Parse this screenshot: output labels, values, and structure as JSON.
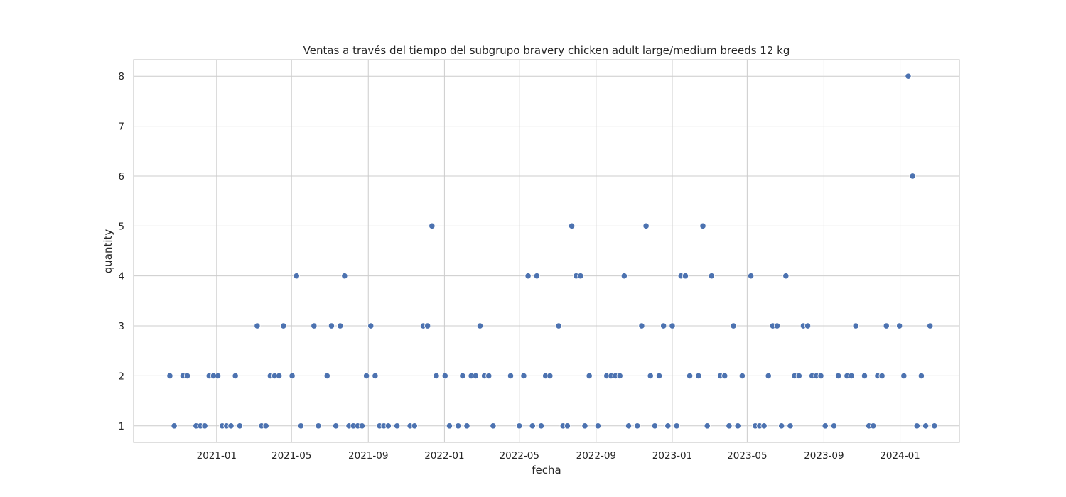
{
  "chart_data": {
    "type": "scatter",
    "title": "Ventas a través del tiempo del subgrupo bravery chicken adult large/medium breeds 12 kg",
    "xlabel": "fecha",
    "ylabel": "quantity",
    "x_ticks": [
      "2021-01",
      "2021-05",
      "2021-09",
      "2022-01",
      "2022-05",
      "2022-09",
      "2023-01",
      "2023-05",
      "2023-09",
      "2024-01"
    ],
    "y_ticks": [
      "1",
      "2",
      "3",
      "4",
      "5",
      "6",
      "7",
      "8"
    ],
    "xlim": [
      "2020-08-21",
      "2024-04-05"
    ],
    "ylim": [
      0.67,
      8.33
    ],
    "grid": true,
    "marker_color": "#4c72b0",
    "points": [
      {
        "x": "2020-10-18",
        "y": 2
      },
      {
        "x": "2020-10-25",
        "y": 1
      },
      {
        "x": "2020-11-08",
        "y": 2
      },
      {
        "x": "2020-11-15",
        "y": 2
      },
      {
        "x": "2020-11-29",
        "y": 1
      },
      {
        "x": "2020-12-06",
        "y": 1
      },
      {
        "x": "2020-12-13",
        "y": 1
      },
      {
        "x": "2020-12-20",
        "y": 2
      },
      {
        "x": "2020-12-27",
        "y": 2
      },
      {
        "x": "2021-01-03",
        "y": 2
      },
      {
        "x": "2021-01-10",
        "y": 1
      },
      {
        "x": "2021-01-17",
        "y": 1
      },
      {
        "x": "2021-01-24",
        "y": 1
      },
      {
        "x": "2021-01-31",
        "y": 2
      },
      {
        "x": "2021-02-07",
        "y": 1
      },
      {
        "x": "2021-03-07",
        "y": 3
      },
      {
        "x": "2021-03-14",
        "y": 1
      },
      {
        "x": "2021-03-21",
        "y": 1
      },
      {
        "x": "2021-03-28",
        "y": 2
      },
      {
        "x": "2021-04-04",
        "y": 2
      },
      {
        "x": "2021-04-11",
        "y": 2
      },
      {
        "x": "2021-04-18",
        "y": 3
      },
      {
        "x": "2021-05-02",
        "y": 2
      },
      {
        "x": "2021-05-09",
        "y": 4
      },
      {
        "x": "2021-05-16",
        "y": 1
      },
      {
        "x": "2021-06-06",
        "y": 3
      },
      {
        "x": "2021-06-13",
        "y": 1
      },
      {
        "x": "2021-06-27",
        "y": 2
      },
      {
        "x": "2021-07-04",
        "y": 3
      },
      {
        "x": "2021-07-11",
        "y": 1
      },
      {
        "x": "2021-07-18",
        "y": 3
      },
      {
        "x": "2021-07-25",
        "y": 4
      },
      {
        "x": "2021-08-01",
        "y": 1
      },
      {
        "x": "2021-08-08",
        "y": 1
      },
      {
        "x": "2021-08-15",
        "y": 1
      },
      {
        "x": "2021-08-22",
        "y": 1
      },
      {
        "x": "2021-08-29",
        "y": 2
      },
      {
        "x": "2021-09-05",
        "y": 3
      },
      {
        "x": "2021-09-12",
        "y": 2
      },
      {
        "x": "2021-09-19",
        "y": 1
      },
      {
        "x": "2021-09-26",
        "y": 1
      },
      {
        "x": "2021-10-03",
        "y": 1
      },
      {
        "x": "2021-10-17",
        "y": 1
      },
      {
        "x": "2021-11-07",
        "y": 1
      },
      {
        "x": "2021-11-14",
        "y": 1
      },
      {
        "x": "2021-11-28",
        "y": 3
      },
      {
        "x": "2021-12-05",
        "y": 3
      },
      {
        "x": "2021-12-12",
        "y": 5
      },
      {
        "x": "2021-12-19",
        "y": 2
      },
      {
        "x": "2022-01-02",
        "y": 2
      },
      {
        "x": "2022-01-09",
        "y": 1
      },
      {
        "x": "2022-01-23",
        "y": 1
      },
      {
        "x": "2022-01-30",
        "y": 2
      },
      {
        "x": "2022-02-06",
        "y": 1
      },
      {
        "x": "2022-02-13",
        "y": 2
      },
      {
        "x": "2022-02-20",
        "y": 2
      },
      {
        "x": "2022-02-27",
        "y": 3
      },
      {
        "x": "2022-03-06",
        "y": 2
      },
      {
        "x": "2022-03-13",
        "y": 2
      },
      {
        "x": "2022-03-20",
        "y": 1
      },
      {
        "x": "2022-04-17",
        "y": 2
      },
      {
        "x": "2022-05-01",
        "y": 1
      },
      {
        "x": "2022-05-08",
        "y": 2
      },
      {
        "x": "2022-05-15",
        "y": 4
      },
      {
        "x": "2022-05-22",
        "y": 1
      },
      {
        "x": "2022-05-29",
        "y": 4
      },
      {
        "x": "2022-06-05",
        "y": 1
      },
      {
        "x": "2022-06-12",
        "y": 2
      },
      {
        "x": "2022-06-19",
        "y": 2
      },
      {
        "x": "2022-07-03",
        "y": 3
      },
      {
        "x": "2022-07-10",
        "y": 1
      },
      {
        "x": "2022-07-17",
        "y": 1
      },
      {
        "x": "2022-07-24",
        "y": 5
      },
      {
        "x": "2022-07-31",
        "y": 4
      },
      {
        "x": "2022-08-07",
        "y": 4
      },
      {
        "x": "2022-08-14",
        "y": 1
      },
      {
        "x": "2022-08-21",
        "y": 2
      },
      {
        "x": "2022-09-04",
        "y": 1
      },
      {
        "x": "2022-09-18",
        "y": 2
      },
      {
        "x": "2022-09-25",
        "y": 2
      },
      {
        "x": "2022-10-02",
        "y": 2
      },
      {
        "x": "2022-10-09",
        "y": 2
      },
      {
        "x": "2022-10-16",
        "y": 4
      },
      {
        "x": "2022-10-23",
        "y": 1
      },
      {
        "x": "2022-11-06",
        "y": 1
      },
      {
        "x": "2022-11-13",
        "y": 3
      },
      {
        "x": "2022-11-20",
        "y": 5
      },
      {
        "x": "2022-11-27",
        "y": 2
      },
      {
        "x": "2022-12-04",
        "y": 1
      },
      {
        "x": "2022-12-11",
        "y": 2
      },
      {
        "x": "2022-12-18",
        "y": 3
      },
      {
        "x": "2022-12-25",
        "y": 1
      },
      {
        "x": "2023-01-01",
        "y": 3
      },
      {
        "x": "2023-01-08",
        "y": 1
      },
      {
        "x": "2023-01-15",
        "y": 4
      },
      {
        "x": "2023-01-22",
        "y": 4
      },
      {
        "x": "2023-01-29",
        "y": 2
      },
      {
        "x": "2023-02-12",
        "y": 2
      },
      {
        "x": "2023-02-19",
        "y": 5
      },
      {
        "x": "2023-02-26",
        "y": 1
      },
      {
        "x": "2023-03-05",
        "y": 4
      },
      {
        "x": "2023-03-19",
        "y": 2
      },
      {
        "x": "2023-03-26",
        "y": 2
      },
      {
        "x": "2023-04-02",
        "y": 1
      },
      {
        "x": "2023-04-09",
        "y": 3
      },
      {
        "x": "2023-04-16",
        "y": 1
      },
      {
        "x": "2023-04-23",
        "y": 2
      },
      {
        "x": "2023-05-07",
        "y": 4
      },
      {
        "x": "2023-05-14",
        "y": 1
      },
      {
        "x": "2023-05-21",
        "y": 1
      },
      {
        "x": "2023-05-28",
        "y": 1
      },
      {
        "x": "2023-06-04",
        "y": 2
      },
      {
        "x": "2023-06-11",
        "y": 3
      },
      {
        "x": "2023-06-18",
        "y": 3
      },
      {
        "x": "2023-06-25",
        "y": 1
      },
      {
        "x": "2023-07-02",
        "y": 4
      },
      {
        "x": "2023-07-09",
        "y": 1
      },
      {
        "x": "2023-07-16",
        "y": 2
      },
      {
        "x": "2023-07-23",
        "y": 2
      },
      {
        "x": "2023-07-30",
        "y": 3
      },
      {
        "x": "2023-08-06",
        "y": 3
      },
      {
        "x": "2023-08-13",
        "y": 2
      },
      {
        "x": "2023-08-20",
        "y": 2
      },
      {
        "x": "2023-08-27",
        "y": 2
      },
      {
        "x": "2023-09-03",
        "y": 1
      },
      {
        "x": "2023-09-17",
        "y": 1
      },
      {
        "x": "2023-09-24",
        "y": 2
      },
      {
        "x": "2023-10-08",
        "y": 2
      },
      {
        "x": "2023-10-15",
        "y": 2
      },
      {
        "x": "2023-10-22",
        "y": 3
      },
      {
        "x": "2023-11-05",
        "y": 2
      },
      {
        "x": "2023-11-12",
        "y": 1
      },
      {
        "x": "2023-11-19",
        "y": 1
      },
      {
        "x": "2023-11-26",
        "y": 2
      },
      {
        "x": "2023-12-03",
        "y": 2
      },
      {
        "x": "2023-12-10",
        "y": 3
      },
      {
        "x": "2023-12-31",
        "y": 3
      },
      {
        "x": "2024-01-07",
        "y": 2
      },
      {
        "x": "2024-01-14",
        "y": 8
      },
      {
        "x": "2024-01-21",
        "y": 6
      },
      {
        "x": "2024-01-28",
        "y": 1
      },
      {
        "x": "2024-02-04",
        "y": 2
      },
      {
        "x": "2024-02-11",
        "y": 1
      },
      {
        "x": "2024-02-18",
        "y": 3
      },
      {
        "x": "2024-02-25",
        "y": 1
      }
    ]
  }
}
